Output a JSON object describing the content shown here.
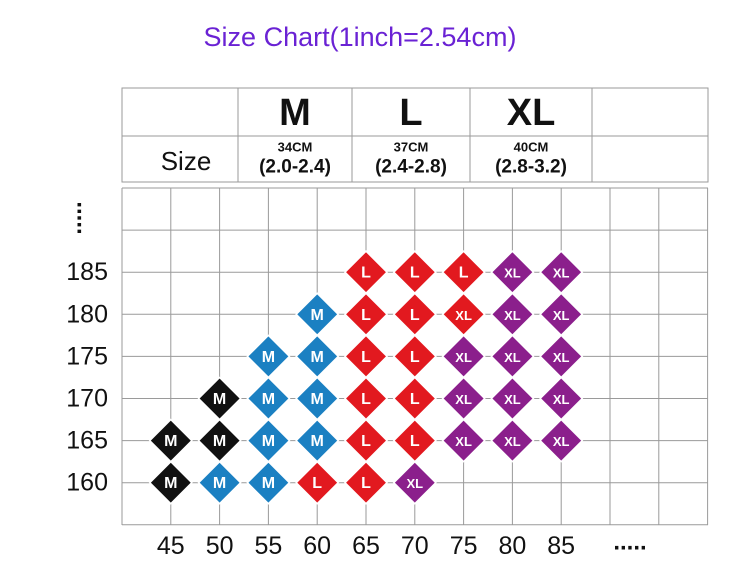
{
  "title": "Size Chart(1inch=2.54cm)",
  "header": {
    "corner": "Size",
    "columns": [
      {
        "size": "M",
        "length": "34CM",
        "range": "(2.0-2.4)"
      },
      {
        "size": "L",
        "length": "37CM",
        "range": "(2.4-2.8)"
      },
      {
        "size": "XL",
        "length": "40CM",
        "range": "(2.8-3.2)"
      }
    ]
  },
  "y_more": ".....",
  "x_more": ".....",
  "heights": [
    185,
    180,
    175,
    170,
    165,
    160
  ],
  "weights": [
    45,
    50,
    55,
    60,
    65,
    70,
    75,
    80,
    85
  ],
  "size_colors": {
    "M": "#1b80c2",
    "L": "#e2191f",
    "XL": "#8b1f8c"
  },
  "marks": [
    {
      "weight": 65,
      "height": 185,
      "size": "L"
    },
    {
      "weight": 70,
      "height": 185,
      "size": "L"
    },
    {
      "weight": 75,
      "height": 185,
      "size": "L"
    },
    {
      "weight": 80,
      "height": 185,
      "size": "XL"
    },
    {
      "weight": 85,
      "height": 185,
      "size": "XL"
    },
    {
      "weight": 60,
      "height": 180,
      "size": "M"
    },
    {
      "weight": 65,
      "height": 180,
      "size": "L"
    },
    {
      "weight": 70,
      "height": 180,
      "size": "L"
    },
    {
      "weight": 75,
      "height": 180,
      "size": "XL",
      "color": "#e2191f"
    },
    {
      "weight": 80,
      "height": 180,
      "size": "XL"
    },
    {
      "weight": 85,
      "height": 180,
      "size": "XL"
    },
    {
      "weight": 55,
      "height": 175,
      "size": "M"
    },
    {
      "weight": 60,
      "height": 175,
      "size": "M"
    },
    {
      "weight": 65,
      "height": 175,
      "size": "L"
    },
    {
      "weight": 70,
      "height": 175,
      "size": "L"
    },
    {
      "weight": 75,
      "height": 175,
      "size": "XL"
    },
    {
      "weight": 80,
      "height": 175,
      "size": "XL"
    },
    {
      "weight": 85,
      "height": 175,
      "size": "XL"
    },
    {
      "weight": 50,
      "height": 170,
      "size": "M",
      "color": "#111111"
    },
    {
      "weight": 55,
      "height": 170,
      "size": "M"
    },
    {
      "weight": 60,
      "height": 170,
      "size": "M"
    },
    {
      "weight": 65,
      "height": 170,
      "size": "L"
    },
    {
      "weight": 70,
      "height": 170,
      "size": "L"
    },
    {
      "weight": 75,
      "height": 170,
      "size": "XL"
    },
    {
      "weight": 80,
      "height": 170,
      "size": "XL"
    },
    {
      "weight": 85,
      "height": 170,
      "size": "XL"
    },
    {
      "weight": 45,
      "height": 165,
      "size": "M",
      "color": "#111111"
    },
    {
      "weight": 50,
      "height": 165,
      "size": "M",
      "color": "#111111"
    },
    {
      "weight": 55,
      "height": 165,
      "size": "M"
    },
    {
      "weight": 60,
      "height": 165,
      "size": "M"
    },
    {
      "weight": 65,
      "height": 165,
      "size": "L"
    },
    {
      "weight": 70,
      "height": 165,
      "size": "L"
    },
    {
      "weight": 75,
      "height": 165,
      "size": "XL"
    },
    {
      "weight": 80,
      "height": 165,
      "size": "XL"
    },
    {
      "weight": 85,
      "height": 165,
      "size": "XL"
    },
    {
      "weight": 45,
      "height": 160,
      "size": "M",
      "color": "#111111"
    },
    {
      "weight": 50,
      "height": 160,
      "size": "M"
    },
    {
      "weight": 55,
      "height": 160,
      "size": "M"
    },
    {
      "weight": 60,
      "height": 160,
      "size": "L"
    },
    {
      "weight": 65,
      "height": 160,
      "size": "L"
    },
    {
      "weight": 70,
      "height": 160,
      "size": "XL"
    }
  ]
}
